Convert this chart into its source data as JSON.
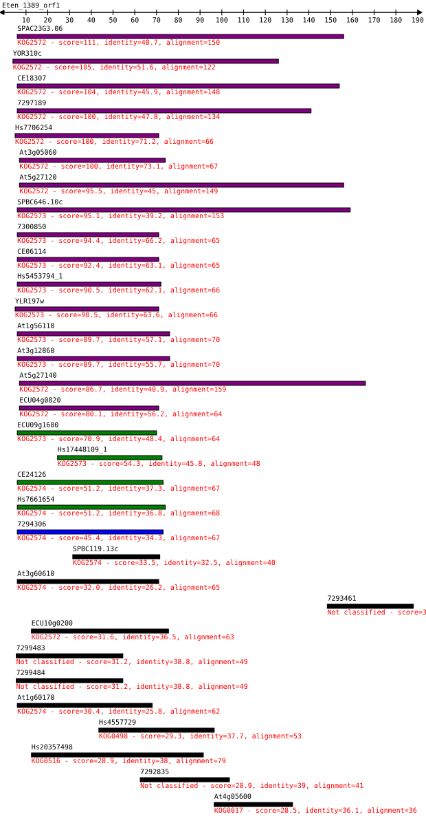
{
  "chart_data": {
    "type": "bar",
    "orientation": "horizontal",
    "title": "Eten_1389_orf1",
    "categories": [
      "SPAC23G3.06",
      "YOR310c",
      "CE18307",
      "7297189",
      "Hs7706254",
      "At3g05060",
      "At5g27120",
      "SPBC646.10c",
      "7300850",
      "CE06114",
      "Hs5453794_1",
      "YLR197w",
      "At1g56110",
      "At3g12860",
      "At5g27140",
      "ECU04g0820",
      "ECU09g1600",
      "Hs17448109_1",
      "CE24126",
      "Hs7661654",
      "7294306",
      "SPBC119.13c",
      "At3g60610",
      "7293461",
      "ECU10g0200",
      "7299483",
      "7299484",
      "At1g60170",
      "Hs4557729",
      "Hs20357498",
      "7292835",
      "At4g05600"
    ],
    "base": [
      6,
      4,
      6,
      6,
      5,
      7,
      7,
      6,
      6,
      6,
      6,
      5,
      6,
      6,
      7,
      7,
      6,
      24.5,
      6,
      6,
      6,
      31.5,
      6,
      148.5,
      12.5,
      5.5,
      5.5,
      6,
      43.5,
      12.5,
      62.5,
      96.5
    ],
    "values": [
      150,
      122,
      148,
      135,
      66,
      67,
      149,
      153,
      65,
      65,
      66,
      66,
      70,
      70,
      159,
      64,
      64,
      48,
      67,
      68,
      67,
      40,
      65,
      39.5,
      63,
      49,
      49,
      62,
      53,
      79,
      41,
      36
    ],
    "colors": [
      "#800080",
      "#800080",
      "#800080",
      "#800080",
      "#800080",
      "#800080",
      "#800080",
      "#800080",
      "#800080",
      "#800080",
      "#800080",
      "#800080",
      "#800080",
      "#800080",
      "#800080",
      "#800080",
      "#008000",
      "#008000",
      "#008000",
      "#008000",
      "#0000ff",
      "#000000",
      "#000000",
      "#000000",
      "#000000",
      "#000000",
      "#000000",
      "#000000",
      "#000000",
      "#000000",
      "#000000",
      "#000000"
    ],
    "value_labels": [
      "KOG2572 - score=111, identity=48.7, alignment=150",
      "KOG2572 - score=105, identity=51.6, alignment=122",
      "KOG2572 - score=104, identity=45.9, alignment=148",
      "KOG2572 - score=100, identity=47.8, alignment=134",
      "KOG2572 - score=100, identity=71.2, alignment=66",
      "KOG2572 - score=100, identity=73.1, alignment=67",
      "KOG2572 - score=95.5, identity=45, alignment=149",
      "KOG2573 - score=95.1, identity=39.2, alignment=153",
      "KOG2573 - score=94.4, identity=66.2, alignment=65",
      "KOG2573 - score=92.4, identity=63.1, alignment=65",
      "KOG2573 - score=90.5, identity=62.1, alignment=66",
      "KOG2573 - score=90.5, identity=63.6, alignment=66",
      "KOG2573 - score=89.7, identity=57.1, alignment=70",
      "KOG2573 - score=89.7, identity=55.7, alignment=70",
      "KOG2572 - score=86.7, identity=40.9, alignment=159",
      "KOG2572 - score=80.1, identity=56.2, alignment=64",
      "KOG2573 - score=70.9, identity=48.4, alignment=64",
      "KOG2573 - score=54.3, identity=45.8, alignment=48",
      "KOG2574 - score=51.2, identity=37.3, alignment=67",
      "KOG2574 - score=51.2, identity=36.8, alignment=68",
      "KOG2574 - score=45.4, identity=34.3, alignment=67",
      "KOG2574 - score=33.5, identity=32.5, alignment=40",
      "KOG2574 - score=32.0, identity=26.2, alignment=65",
      null,
      "KOG2572 - score=31.6, identity=36.5, alignment=63",
      "Not classified - score=31.2, identity=38.8, alignment=49",
      "Not classified - score=31.2, identity=38.8, alignment=49",
      "KOG2574 - score=30.4, identity=25.8, alignment=62",
      "KOG0498 - score=29.3, identity=37.7, alignment=53",
      "KOG0516 - score=28.9, identity=38, alignment=79",
      "Not classified - score=28.9, identity=39, alignment=41",
      "KOG0017 - score=28.5, identity=36.1, alignment=36"
    ],
    "annotations": [
      "Not classified - score=3"
    ],
    "xlim": [
      -1,
      191
    ],
    "xticks": [
      10,
      20,
      30,
      40,
      50,
      60,
      70,
      80,
      90,
      100,
      110,
      120,
      130,
      140,
      150,
      160,
      170,
      180,
      190
    ],
    "grid": false,
    "legend": false
  }
}
